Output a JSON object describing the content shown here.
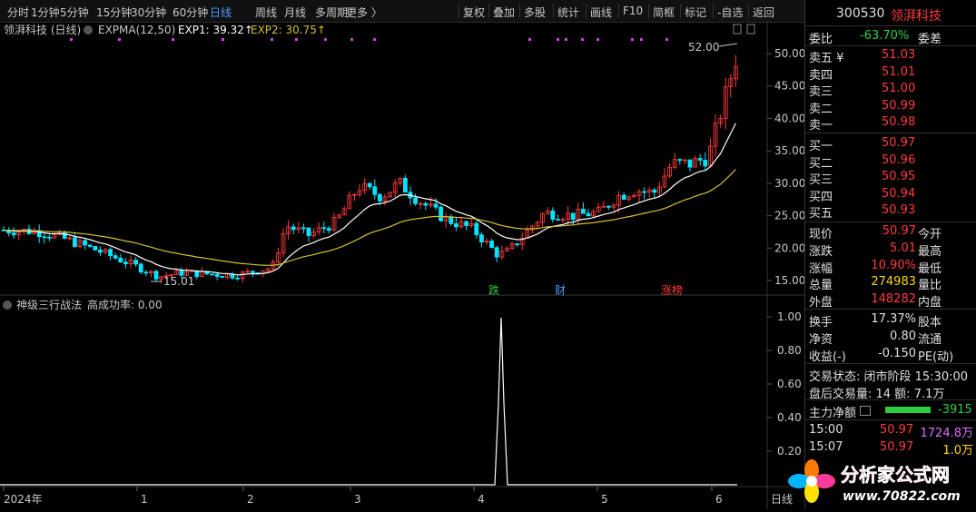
{
  "toolbar": {
    "periods": [
      "分时",
      "1分钟",
      "5分钟",
      "15分钟",
      "30分钟",
      "60分钟",
      "日线",
      "周线",
      "月线",
      "多周期",
      "更多 〉"
    ],
    "active_period": "日线",
    "tools": [
      "复权",
      "叠加",
      "多股",
      "统计",
      "画线",
      "F10",
      "简框",
      "标记",
      "-自选",
      "返回"
    ]
  },
  "main_chart": {
    "stock_label": "领湃科技 (日线)",
    "indicator": "EXPMA(12,50)",
    "exp1_label": "EXP1: 39.32↑",
    "exp2_label": "EXP2: 30.75↑",
    "high_marker": "52.00",
    "low_marker": "15.01",
    "price_ticks": [
      "50.00",
      "45.00",
      "40.00",
      "35.00",
      "30.00",
      "25.00",
      "20.00",
      "15.00"
    ],
    "event_tags": [
      "跌",
      "财",
      "涨榜"
    ]
  },
  "sub_chart": {
    "title": "神级三行战法",
    "subtitle": "高成功率: 0.00",
    "ticks": [
      "1.00",
      "0.80",
      "0.60",
      "0.40",
      "0.20"
    ]
  },
  "x_axis": {
    "labels": [
      "2024年",
      "1",
      "2",
      "3",
      "4",
      "5",
      "6"
    ],
    "tail": "日线"
  },
  "colors": {
    "up": "#ff3b3b",
    "down": "#00e5ff",
    "exp1": "#ffffff",
    "exp2": "#d4c030",
    "tag_up": "#ff3b3b",
    "tag_down": "#2ecc40"
  },
  "quote": {
    "code": "300530",
    "name": "领湃科技",
    "weibi_label": "委比",
    "weibi_value": "-63.70%",
    "weicha_label": "委差",
    "sells": [
      {
        "label": "卖五 ¥",
        "price": "51.03"
      },
      {
        "label": "卖四",
        "price": "51.01"
      },
      {
        "label": "卖三",
        "price": "51.00"
      },
      {
        "label": "卖二",
        "price": "50.99"
      },
      {
        "label": "卖一",
        "price": "50.98"
      }
    ],
    "buys": [
      {
        "label": "买一",
        "price": "50.97"
      },
      {
        "label": "买二",
        "price": "50.96"
      },
      {
        "label": "买三",
        "price": "50.95"
      },
      {
        "label": "买四",
        "price": "50.94"
      },
      {
        "label": "买五",
        "price": "50.93"
      }
    ],
    "stats": [
      {
        "label": "现价",
        "value": "50.97",
        "label2": "今开"
      },
      {
        "label": "涨跌",
        "value": "5.01",
        "label2": "最高"
      },
      {
        "label": "涨幅",
        "value": "10.90%",
        "label2": "最低"
      },
      {
        "label": "总量",
        "value": "274983",
        "label2": "量比"
      },
      {
        "label": "外盘",
        "value": "148282",
        "label2": "内盘"
      }
    ],
    "stats2": [
      {
        "label": "换手",
        "value": "17.37%",
        "label2": "股本"
      },
      {
        "label": "净资",
        "value": "0.80",
        "label2": "流通"
      },
      {
        "label": "收益(-)",
        "value": "-0.150",
        "label2": "PE(动)"
      }
    ],
    "trade_status": "交易状态: 闭市阶段 15:30:00",
    "after_hours": "盘后交易量: 14  额: 7.1万",
    "main_flow_label": "主力净额",
    "main_flow_value": "-3915",
    "ticks_list": [
      {
        "time": "15:00",
        "price": "50.97",
        "vol": "1724.8万"
      },
      {
        "time": "15:07",
        "price": "50.97",
        "vol": "1.0万"
      }
    ]
  },
  "watermark": {
    "text": "分析家公式网",
    "url": "www.70822.com"
  }
}
